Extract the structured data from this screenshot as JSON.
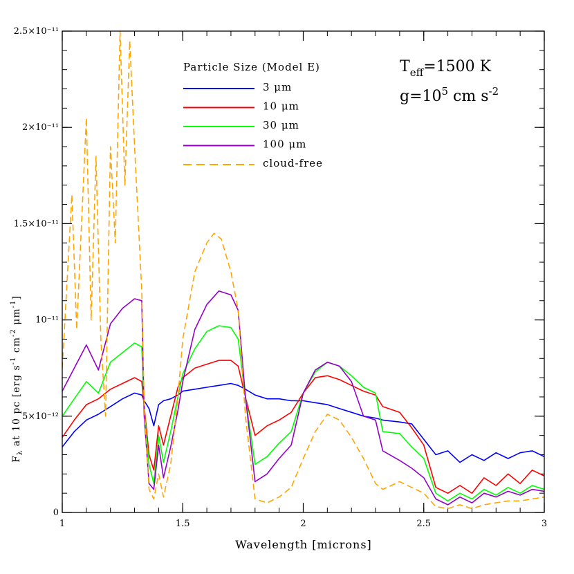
{
  "chart_data": {
    "type": "line",
    "title": "",
    "xlabel": "Wavelength  [microns]",
    "ylabel_parts": {
      "f": "F",
      "lambda": "λ",
      "rest": " at 10 pc [erg s",
      "sup1": "-1",
      "cm": " cm",
      "sup2": "-2",
      "mu": " μm",
      "sup3": "-1",
      "close": "]"
    },
    "xlim": [
      1.0,
      3.0
    ],
    "ylim": [
      0,
      2.5e-11
    ],
    "x_ticks": [
      1,
      1.5,
      2,
      2.5,
      3
    ],
    "x_tick_labels": [
      "1",
      "1.5",
      "2",
      "2.5",
      "3"
    ],
    "y_ticks": [
      0,
      5e-12,
      1e-11,
      1.5e-11,
      2e-11,
      2.5e-11
    ],
    "y_tick_labels": [
      "0",
      "5×10⁻¹²",
      "10⁻¹¹",
      "1.5×10⁻¹¹",
      "2×10⁻¹¹",
      "2.5×10⁻¹¹"
    ],
    "legend": {
      "title": "Particle Size (Model E)",
      "placement": "top-center"
    },
    "annotations": {
      "teff": {
        "T": "T",
        "sub": "eff",
        "rest": "=1500 K"
      },
      "g": {
        "g": "g=10",
        "sup": "5",
        "rest": " cm s",
        "sup2": "-2"
      }
    },
    "series": [
      {
        "name": "3 μm",
        "color": "#0000ff",
        "dash": false,
        "x": [
          1.0,
          1.05,
          1.1,
          1.15,
          1.2,
          1.25,
          1.3,
          1.33,
          1.34,
          1.36,
          1.38,
          1.4,
          1.42,
          1.45,
          1.48,
          1.5,
          1.55,
          1.6,
          1.65,
          1.7,
          1.73,
          1.76,
          1.8,
          1.85,
          1.9,
          1.95,
          2.0,
          2.05,
          2.1,
          2.15,
          2.2,
          2.25,
          2.3,
          2.33,
          2.4,
          2.45,
          2.5,
          2.55,
          2.6,
          2.65,
          2.7,
          2.75,
          2.8,
          2.85,
          2.9,
          2.95,
          3.0
        ],
        "y": [
          3.4e-12,
          4.2e-12,
          4.8e-12,
          5.1e-12,
          5.5e-12,
          5.9e-12,
          6.2e-12,
          6.1e-12,
          5.8e-12,
          5.4e-12,
          4.5e-12,
          5.6e-12,
          5.8e-12,
          5.9e-12,
          6.1e-12,
          6.3e-12,
          6.4e-12,
          6.5e-12,
          6.6e-12,
          6.7e-12,
          6.6e-12,
          6.4e-12,
          6.1e-12,
          5.9e-12,
          5.9e-12,
          5.8e-12,
          5.8e-12,
          5.7e-12,
          5.6e-12,
          5.4e-12,
          5.2e-12,
          5e-12,
          4.9e-12,
          4.8e-12,
          4.7e-12,
          4.6e-12,
          3.8e-12,
          3e-12,
          3.2e-12,
          2.6e-12,
          3e-12,
          2.7e-12,
          3.1e-12,
          2.8e-12,
          3.1e-12,
          3.2e-12,
          2.9e-12
        ]
      },
      {
        "name": "10 μm",
        "color": "#ff0000",
        "dash": false,
        "x": [
          1.0,
          1.05,
          1.1,
          1.15,
          1.2,
          1.25,
          1.3,
          1.33,
          1.34,
          1.36,
          1.38,
          1.4,
          1.42,
          1.45,
          1.48,
          1.5,
          1.55,
          1.6,
          1.65,
          1.7,
          1.73,
          1.76,
          1.8,
          1.85,
          1.9,
          1.95,
          2.0,
          2.05,
          2.1,
          2.15,
          2.2,
          2.25,
          2.3,
          2.33,
          2.4,
          2.45,
          2.5,
          2.55,
          2.6,
          2.65,
          2.7,
          2.75,
          2.8,
          2.85,
          2.9,
          2.95,
          3.0
        ],
        "y": [
          3.9e-12,
          4.8e-12,
          5.6e-12,
          5.9e-12,
          6.4e-12,
          6.7e-12,
          7e-12,
          6.8e-12,
          5.5e-12,
          3e-12,
          2.2e-12,
          4.5e-12,
          3.5e-12,
          5e-12,
          6.5e-12,
          7e-12,
          7.5e-12,
          7.7e-12,
          7.9e-12,
          7.9e-12,
          7.6e-12,
          6e-12,
          4e-12,
          4.5e-12,
          4.8e-12,
          5.2e-12,
          6.2e-12,
          7e-12,
          7.1e-12,
          6.9e-12,
          6.6e-12,
          6.3e-12,
          6.1e-12,
          5.5e-12,
          5.2e-12,
          4.4e-12,
          3.5e-12,
          1.3e-12,
          1e-12,
          1.4e-12,
          1e-12,
          1.8e-12,
          1.4e-12,
          2e-12,
          1.5e-12,
          2.2e-12,
          1.9e-12
        ]
      },
      {
        "name": "30 μm",
        "color": "#00ff00",
        "dash": false,
        "x": [
          1.0,
          1.05,
          1.1,
          1.15,
          1.2,
          1.25,
          1.3,
          1.33,
          1.34,
          1.36,
          1.38,
          1.4,
          1.42,
          1.45,
          1.48,
          1.5,
          1.55,
          1.6,
          1.65,
          1.7,
          1.73,
          1.76,
          1.8,
          1.85,
          1.9,
          1.95,
          2.0,
          2.05,
          2.1,
          2.15,
          2.2,
          2.25,
          2.3,
          2.33,
          2.4,
          2.45,
          2.5,
          2.55,
          2.6,
          2.65,
          2.7,
          2.75,
          2.8,
          2.85,
          2.9,
          2.95,
          3.0
        ],
        "y": [
          5e-12,
          5.9e-12,
          6.8e-12,
          6.2e-12,
          7.8e-12,
          8.3e-12,
          8.8e-12,
          8.6e-12,
          5.3e-12,
          2.5e-12,
          1.5e-12,
          4e-12,
          2.6e-12,
          4.2e-12,
          6e-12,
          7.2e-12,
          8.5e-12,
          9.4e-12,
          9.7e-12,
          9.6e-12,
          9e-12,
          6e-12,
          2.5e-12,
          2.9e-12,
          3.6e-12,
          4.2e-12,
          6.2e-12,
          7.3e-12,
          7.8e-12,
          7.6e-12,
          7.1e-12,
          6.5e-12,
          6.2e-12,
          4.2e-12,
          4.1e-12,
          3.4e-12,
          2.8e-12,
          1e-12,
          6e-13,
          1e-12,
          7e-13,
          1.2e-12,
          9e-13,
          1.3e-12,
          1e-12,
          1.4e-12,
          1.2e-12
        ]
      },
      {
        "name": "100 μm",
        "color": "#9400c8",
        "dash": false,
        "x": [
          1.0,
          1.05,
          1.1,
          1.15,
          1.2,
          1.25,
          1.3,
          1.33,
          1.34,
          1.36,
          1.38,
          1.4,
          1.42,
          1.45,
          1.48,
          1.5,
          1.55,
          1.6,
          1.65,
          1.7,
          1.73,
          1.76,
          1.8,
          1.85,
          1.9,
          1.95,
          2.0,
          2.05,
          2.1,
          2.15,
          2.2,
          2.25,
          2.3,
          2.33,
          2.4,
          2.45,
          2.5,
          2.55,
          2.6,
          2.65,
          2.7,
          2.75,
          2.8,
          2.85,
          2.9,
          2.95,
          3.0
        ],
        "y": [
          6.3e-12,
          7.5e-12,
          8.7e-12,
          7.4e-12,
          9.8e-12,
          1.06e-11,
          1.11e-11,
          1.1e-11,
          5e-12,
          1.5e-12,
          1.2e-12,
          3.5e-12,
          1.8e-12,
          3.4e-12,
          5.3e-12,
          6.8e-12,
          9.5e-12,
          1.08e-11,
          1.15e-11,
          1.13e-11,
          1.05e-11,
          6e-12,
          1.6e-12,
          2e-12,
          2.8e-12,
          3.5e-12,
          6.2e-12,
          7.4e-12,
          7.8e-12,
          7.6e-12,
          6.8e-12,
          5e-12,
          4.8e-12,
          3.2e-12,
          2.7e-12,
          2.3e-12,
          1.8e-12,
          7e-13,
          4e-13,
          8e-13,
          5e-13,
          1e-12,
          8e-13,
          1.1e-12,
          9e-13,
          1.2e-12,
          1.1e-12
        ]
      },
      {
        "name": "cloud-free",
        "color": "#ffa500",
        "dash": true,
        "x": [
          1.0,
          1.02,
          1.04,
          1.06,
          1.08,
          1.1,
          1.12,
          1.14,
          1.16,
          1.18,
          1.2,
          1.22,
          1.24,
          1.26,
          1.28,
          1.3,
          1.33,
          1.34,
          1.36,
          1.38,
          1.4,
          1.42,
          1.45,
          1.48,
          1.5,
          1.55,
          1.6,
          1.63,
          1.66,
          1.7,
          1.73,
          1.76,
          1.8,
          1.85,
          1.9,
          1.95,
          2.0,
          2.05,
          2.1,
          2.15,
          2.2,
          2.25,
          2.3,
          2.33,
          2.4,
          2.45,
          2.5,
          2.55,
          2.6,
          2.65,
          2.7,
          2.75,
          2.8,
          2.85,
          2.9,
          2.95,
          3.0
        ],
        "y": [
          7.5e-12,
          1.2e-11,
          1.65e-11,
          9.5e-12,
          1.5e-11,
          2.05e-11,
          1e-11,
          1.85e-11,
          9e-12,
          5e-12,
          1.9e-11,
          1.4e-11,
          2.5e-11,
          1.7e-11,
          2.45e-11,
          1.9e-11,
          1.15e-11,
          5.5e-12,
          1.2e-12,
          7e-13,
          2e-12,
          8e-13,
          2.5e-12,
          6e-12,
          9e-12,
          1.25e-11,
          1.4e-11,
          1.45e-11,
          1.42e-11,
          1.25e-11,
          1.05e-11,
          5e-12,
          7e-13,
          5e-13,
          8e-13,
          1.3e-12,
          2.8e-12,
          4.2e-12,
          5.1e-12,
          4.8e-12,
          3.9e-12,
          2.8e-12,
          1.5e-12,
          1.2e-12,
          1.6e-12,
          1.3e-12,
          1e-12,
          3e-13,
          2e-13,
          4e-13,
          2e-13,
          4e-13,
          5e-13,
          6e-13,
          6e-13,
          7e-13,
          8e-13
        ]
      }
    ]
  }
}
